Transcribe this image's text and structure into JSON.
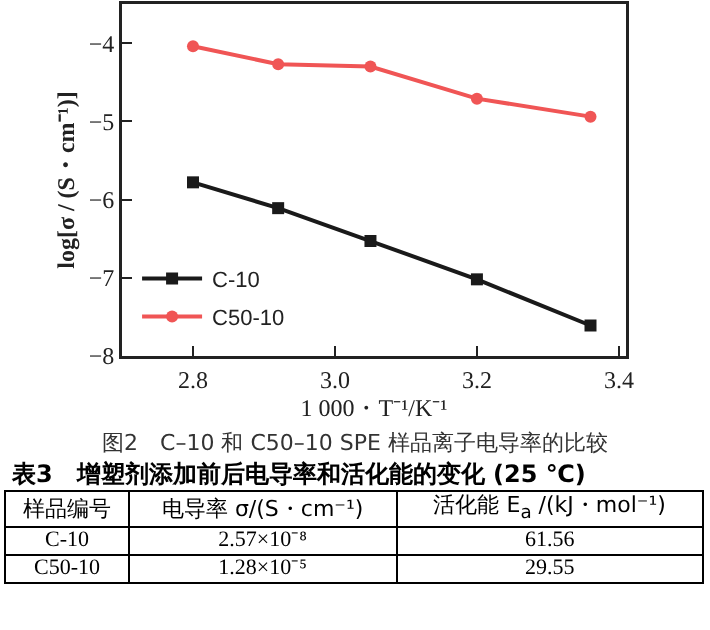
{
  "chart_data": {
    "type": "line",
    "xlabel": "1 000・T⁻¹/K⁻¹",
    "ylabel": "log[σ / (S・cm⁻¹)]",
    "x": [
      2.8,
      2.92,
      3.05,
      3.2,
      3.36
    ],
    "series": [
      {
        "name": "C-10",
        "color": "#1a1a1a",
        "marker": "square",
        "values": [
          -5.78,
          -6.11,
          -6.53,
          -7.02,
          -7.61
        ]
      },
      {
        "name": "C50-10",
        "color": "#f05555",
        "marker": "circle",
        "values": [
          -4.04,
          -4.27,
          -4.3,
          -4.71,
          -4.94
        ]
      }
    ],
    "xlim": [
      2.7,
      3.41
    ],
    "xticks": [
      2.8,
      {
        "value": 3,
        "label": "3.0"
      },
      3.2,
      3.4
    ],
    "ylim": [
      -8,
      -3.5
    ],
    "yticks": [
      -8,
      -7,
      -6,
      -5,
      -4
    ],
    "grid": false,
    "legend": "bottom left",
    "line_style": "solid",
    "annotations": [
      "图2　C–10 和 C50–10 SPE 样品离子电导率的比较",
      "表3　增塑剂添加前后电导率和活化能的变化 (25 ℃)",
      "样品编号",
      "电导率 σ/(S・cm⁻¹)",
      "活化能 E$_{a}$ /(kJ・mol⁻¹)",
      "C-10",
      "2.57×10⁻⁸",
      "61.56",
      "C50-10",
      "1.28×10⁻⁵",
      "29.55"
    ]
  }
}
